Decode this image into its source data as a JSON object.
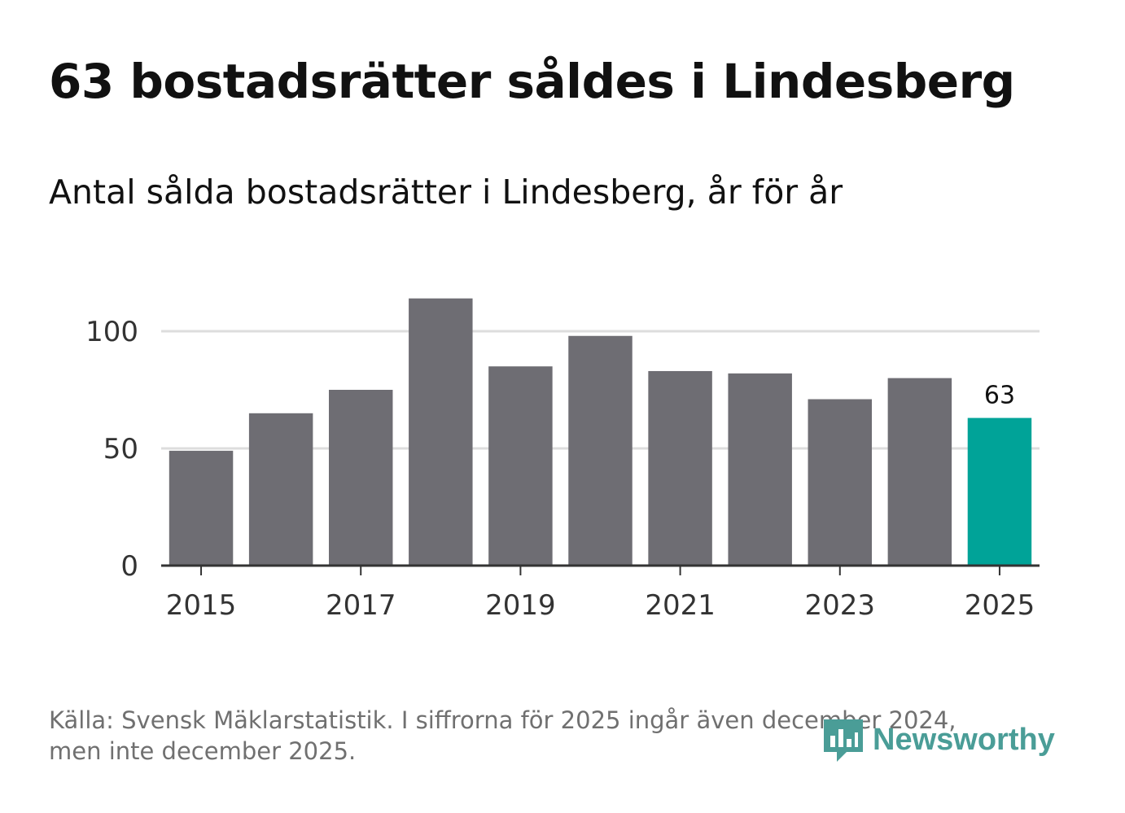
{
  "title": "63 bostadsrätter såldes i Lindesberg",
  "subtitle": "Antal sålda bostadsrätter i Lindesberg, år för år",
  "source": {
    "line1": "Källa: Svensk Mäklarstatistik. I siffrorna för 2025 ingår även december 2024,",
    "line2": "men inte december 2025."
  },
  "brand": {
    "name": "Newsworthy",
    "icon": "bar-chart-icon",
    "color": "#4a9d97"
  },
  "colors": {
    "bar": "#6e6d73",
    "highlight": "#00a398",
    "grid": "#dddddd",
    "axis": "#333333",
    "tick_text": "#333333"
  },
  "chart_data": {
    "type": "bar",
    "title": "Antal sålda bostadsrätter i Lindesberg, år för år",
    "categories": [
      2015,
      2016,
      2017,
      2018,
      2019,
      2020,
      2021,
      2022,
      2023,
      2024,
      2025
    ],
    "values": [
      49,
      65,
      75,
      114,
      85,
      98,
      83,
      82,
      71,
      80,
      63
    ],
    "highlight_index": 10,
    "highlight_label": "63",
    "xticks": [
      "2015",
      "2017",
      "2019",
      "2021",
      "2023",
      "2025"
    ],
    "yticks": [
      0,
      50,
      100
    ],
    "ylim": [
      0,
      114
    ],
    "grid": true,
    "xlabel": "",
    "ylabel": ""
  }
}
